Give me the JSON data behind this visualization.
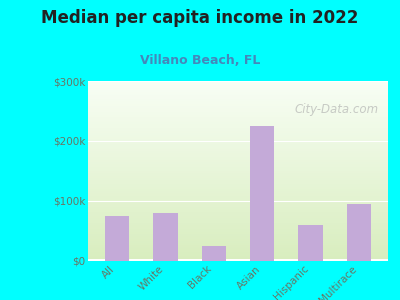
{
  "title": "Median per capita income in 2022",
  "subtitle": "Villano Beach, FL",
  "categories": [
    "All",
    "White",
    "Black",
    "Asian",
    "Hispanic",
    "Multirace"
  ],
  "values": [
    75000,
    80000,
    25000,
    225000,
    60000,
    95000
  ],
  "bar_color": "#c4aad8",
  "background_outer": "#00ffff",
  "background_inner_top": "#f0faf0",
  "background_inner_bottom": "#d8edbe",
  "title_color": "#222222",
  "subtitle_color": "#4488bb",
  "tick_color": "#667766",
  "ylim": [
    0,
    300000
  ],
  "yticks": [
    0,
    100000,
    200000,
    300000
  ],
  "ytick_labels": [
    "$0",
    "$100k",
    "$200k",
    "$300k"
  ],
  "watermark": "City-Data.com"
}
